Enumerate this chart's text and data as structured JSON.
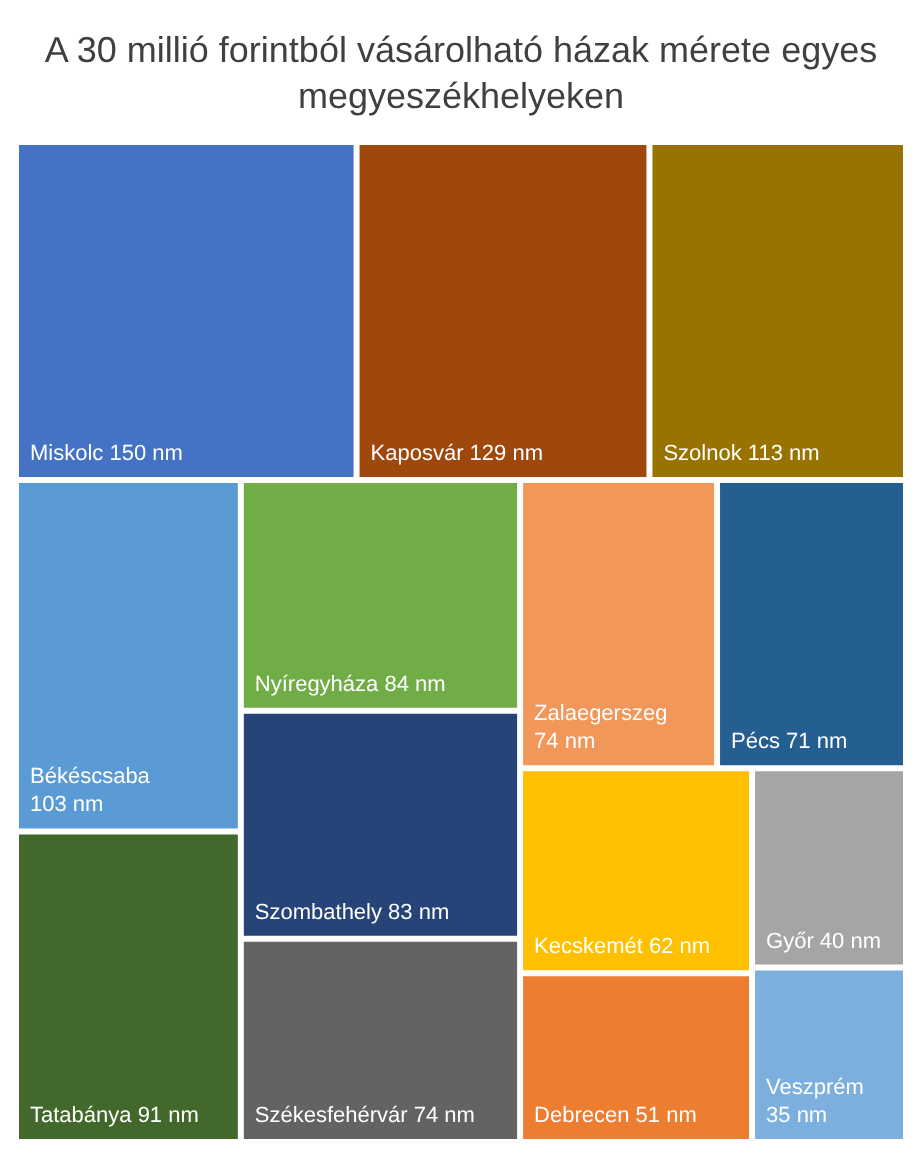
{
  "chart_data": {
    "type": "other",
    "title": "A 30 millió forintból vásárolható házak mérete egyes megyeszékhelyeken",
    "categories": [
      "Miskolc",
      "Kaposvár",
      "Szolnok",
      "Békéscsaba",
      "Tatabánya",
      "Nyíregyháza",
      "Szombathely",
      "Székesfehérvár",
      "Zalaegerszeg",
      "Pécs",
      "Kecskemét",
      "Debrecen",
      "Győr",
      "Veszprém"
    ],
    "values": [
      150,
      129,
      113,
      103,
      91,
      84,
      83,
      74,
      74,
      71,
      62,
      51,
      40,
      35
    ],
    "value_labels": [
      "150 nm",
      "129 nm",
      "113 nm",
      "103 nm",
      "91 nm",
      "84 nm",
      "83 nm",
      "74 nm",
      "74 nm",
      "71 nm",
      "62 nm",
      "51 nm",
      "40 nm",
      "35 nm"
    ],
    "colors": [
      "#4472c4",
      "#9e480e",
      "#997300",
      "#5b9bd5",
      "#43682b",
      "#70ad47",
      "#264478",
      "#636363",
      "#f1975a",
      "#255e91",
      "#ffc000",
      "#ed7d31",
      "#a5a5a5",
      "#7cafdd"
    ]
  }
}
